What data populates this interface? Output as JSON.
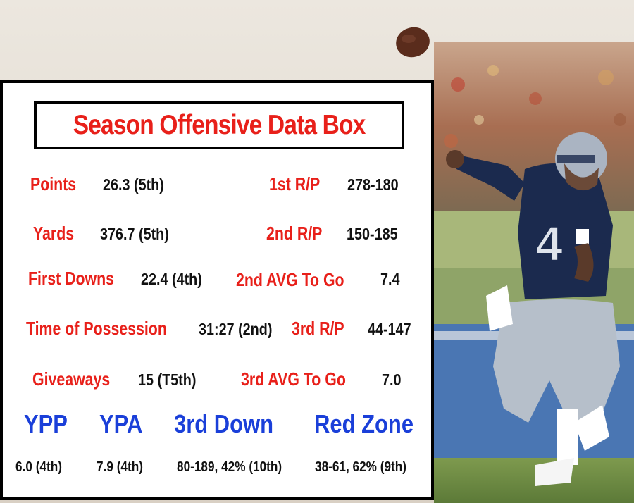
{
  "title": "Season Offensive Data Box",
  "left_stats": [
    {
      "label": "Points",
      "value": "26.3 (5th)"
    },
    {
      "label": "Yards",
      "value": "376.7 (5th)"
    },
    {
      "label": "First Downs",
      "value": "22.4 (4th)"
    },
    {
      "label": "Time of Possession",
      "value": "31:27 (2nd)"
    },
    {
      "label": "Giveaways",
      "value": "15 (T5th)"
    }
  ],
  "right_stats": [
    {
      "label": "1st R/P",
      "value": "278-180"
    },
    {
      "label": "2nd R/P",
      "value": "150-185"
    },
    {
      "label": "2nd AVG To Go",
      "value": "7.4"
    },
    {
      "label": "3rd R/P",
      "value": "44-147"
    },
    {
      "label": "3rd AVG To Go",
      "value": "7.0"
    }
  ],
  "bottom_stats": [
    {
      "label": "YPP",
      "value": "6.0 (4th)"
    },
    {
      "label": "YPA",
      "value": "7.9 (4th)"
    },
    {
      "label": "3rd Down",
      "value": "80-189, 42% (10th)"
    },
    {
      "label": "Red Zone",
      "value": "38-61, 62% (9th)"
    }
  ],
  "colors": {
    "label_red": "#e8201a",
    "head_blue": "#1a3fd9",
    "value_black": "#111111",
    "jersey_navy": "#1b2a4e"
  }
}
